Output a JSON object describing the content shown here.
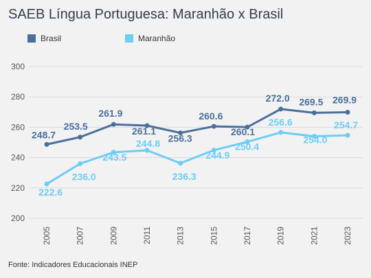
{
  "chart_data": {
    "type": "line",
    "title": "SAEB Língua Portuguesa: Maranhão x Brasil",
    "source": "Fonte: Indicadores Educacionais INEP",
    "categories": [
      "2005",
      "2007",
      "2009",
      "2011",
      "2013",
      "2015",
      "2017",
      "2019",
      "2021",
      "2023"
    ],
    "ylim": [
      200,
      300
    ],
    "yticks": [
      "200",
      "220",
      "240",
      "260",
      "280",
      "300"
    ],
    "grid": true,
    "legend_position": "top-left",
    "series": [
      {
        "name": "Brasil",
        "color": "#4a6f9c",
        "values": [
          248.7,
          253.5,
          261.9,
          261.1,
          256.3,
          260.6,
          260.1,
          272.0,
          269.5,
          269.9
        ],
        "labels": [
          "248.7",
          "253.5",
          "261.9",
          "261.1",
          "256.3",
          "260.6",
          "260.1",
          "272.0",
          "269.5",
          "269.9"
        ]
      },
      {
        "name": "Maranhão",
        "color": "#6ccdf5",
        "values": [
          222.6,
          236.0,
          243.5,
          244.8,
          236.3,
          244.9,
          250.4,
          256.6,
          254.0,
          254.7
        ],
        "labels": [
          "222.6",
          "236.0",
          "243.5",
          "244.8",
          "236.3",
          "244.9",
          "250.4",
          "256.6",
          "254.0",
          "254.7"
        ]
      }
    ]
  }
}
